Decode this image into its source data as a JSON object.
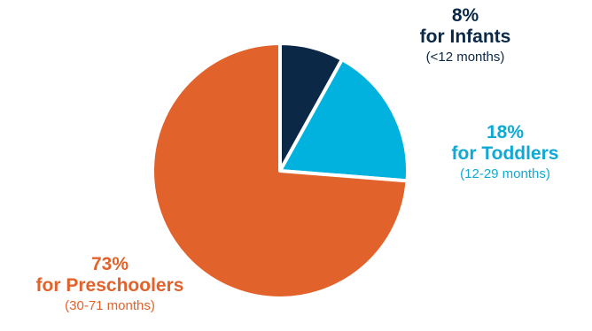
{
  "chart_data": {
    "type": "pie",
    "slices": [
      {
        "key": "infants",
        "value": 8,
        "percent_label": "8%",
        "name": "for Infants",
        "sub": "(<12 months)",
        "color": "#0b2847",
        "text_color": "#0b2847",
        "sub_color": "#0b2847"
      },
      {
        "key": "toddlers",
        "value": 18,
        "percent_label": "18%",
        "name": "for Toddlers",
        "sub": "(12-29 months)",
        "color": "#00b2dd",
        "text_color": "#10a9d3",
        "sub_color": "#10a9d3"
      },
      {
        "key": "preschool",
        "value": 73,
        "percent_label": "73%",
        "name": "for Preschoolers",
        "sub": "(30-71 months)",
        "color": "#e2622b",
        "text_color": "#e2622b",
        "sub_color": "#e2622b"
      }
    ],
    "start_angle": "top",
    "direction": "clockwise"
  }
}
